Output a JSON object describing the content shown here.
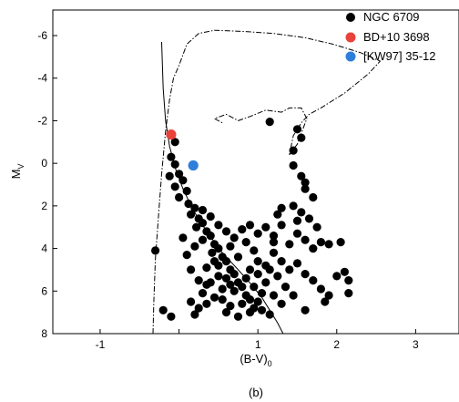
{
  "chart_data": {
    "type": "scatter",
    "caption": "(b)",
    "xlabel": {
      "main": "(B-V)",
      "sub": "0"
    },
    "ylabel": {
      "main": "M",
      "sub": "V"
    },
    "xlim": [
      -1.6,
      3.55
    ],
    "ylim": [
      8,
      -7.2
    ],
    "y_inverted": true,
    "x_ticks": [
      -1,
      0,
      1,
      2,
      3
    ],
    "x_tick_labels": [
      "-1",
      "0",
      "1",
      "2",
      "3"
    ],
    "x_tick_labels_shown": [
      "-1",
      "",
      "1",
      "2",
      "3"
    ],
    "y_ticks": [
      -6,
      -4,
      -2,
      0,
      2,
      4,
      6,
      8
    ],
    "y_tick_labels": [
      "-6",
      "-4",
      "-2",
      "0",
      "2",
      "4",
      "6",
      "8"
    ],
    "legend_position": "top-right",
    "colors": {
      "ngc": "#000000",
      "bd": "#e8423a",
      "kw": "#2e7fdc"
    },
    "series": [
      {
        "name": "NGC 6709",
        "color": "#000000",
        "points": [
          [
            -0.05,
            -1.0
          ],
          [
            -0.1,
            -0.3
          ],
          [
            -0.05,
            0.05
          ],
          [
            0.0,
            0.5
          ],
          [
            -0.12,
            0.6
          ],
          [
            0.05,
            0.8
          ],
          [
            -0.05,
            1.1
          ],
          [
            0.1,
            1.3
          ],
          [
            0.0,
            1.6
          ],
          [
            0.12,
            1.9
          ],
          [
            0.2,
            2.1
          ],
          [
            0.15,
            2.4
          ],
          [
            0.25,
            2.6
          ],
          [
            0.3,
            2.8
          ],
          [
            0.22,
            3.0
          ],
          [
            0.35,
            3.2
          ],
          [
            0.4,
            3.4
          ],
          [
            0.3,
            3.6
          ],
          [
            0.45,
            3.8
          ],
          [
            0.5,
            4.0
          ],
          [
            0.42,
            4.2
          ],
          [
            0.55,
            4.4
          ],
          [
            0.6,
            4.6
          ],
          [
            0.5,
            4.8
          ],
          [
            0.65,
            5.0
          ],
          [
            0.7,
            5.2
          ],
          [
            0.6,
            5.4
          ],
          [
            0.75,
            5.6
          ],
          [
            0.8,
            5.8
          ],
          [
            0.7,
            6.0
          ],
          [
            0.85,
            6.2
          ],
          [
            0.9,
            6.4
          ],
          [
            0.8,
            6.6
          ],
          [
            0.95,
            6.8
          ],
          [
            1.0,
            6.5
          ],
          [
            0.55,
            5.9
          ],
          [
            0.45,
            6.3
          ],
          [
            0.35,
            5.7
          ],
          [
            0.3,
            6.1
          ],
          [
            0.25,
            6.8
          ],
          [
            0.2,
            7.1
          ],
          [
            0.15,
            6.5
          ],
          [
            -0.2,
            6.9
          ],
          [
            -0.1,
            7.2
          ],
          [
            -0.3,
            4.1
          ],
          [
            0.05,
            3.5
          ],
          [
            0.1,
            4.3
          ],
          [
            0.2,
            3.9
          ],
          [
            0.15,
            5.0
          ],
          [
            0.25,
            5.5
          ],
          [
            1.1,
            3.0
          ],
          [
            1.2,
            3.4
          ],
          [
            1.3,
            2.9
          ],
          [
            1.4,
            3.8
          ],
          [
            1.5,
            3.3
          ],
          [
            1.6,
            3.6
          ],
          [
            1.7,
            4.0
          ],
          [
            1.8,
            3.7
          ],
          [
            1.9,
            3.8
          ],
          [
            2.05,
            3.7
          ],
          [
            1.25,
            2.4
          ],
          [
            1.3,
            2.1
          ],
          [
            1.5,
            2.7
          ],
          [
            1.75,
            3.0
          ],
          [
            1.65,
            2.6
          ],
          [
            1.45,
            2.0
          ],
          [
            1.55,
            2.3
          ],
          [
            1.6,
            1.2
          ],
          [
            1.7,
            1.6
          ],
          [
            1.45,
            -0.6
          ],
          [
            1.55,
            -1.2
          ],
          [
            1.5,
            -1.6
          ],
          [
            1.45,
            0.1
          ],
          [
            1.55,
            0.6
          ],
          [
            1.6,
            0.9
          ],
          [
            1.15,
            -1.95
          ],
          [
            1.2,
            4.2
          ],
          [
            1.3,
            4.6
          ],
          [
            1.4,
            5.0
          ],
          [
            1.5,
            4.7
          ],
          [
            1.6,
            5.2
          ],
          [
            1.7,
            5.5
          ],
          [
            1.8,
            5.9
          ],
          [
            1.9,
            6.2
          ],
          [
            2.0,
            5.3
          ],
          [
            2.1,
            5.1
          ],
          [
            2.15,
            5.5
          ],
          [
            2.15,
            6.1
          ],
          [
            1.85,
            6.5
          ],
          [
            1.6,
            6.9
          ],
          [
            1.2,
            6.2
          ],
          [
            1.3,
            6.6
          ],
          [
            1.1,
            5.6
          ],
          [
            1.0,
            5.2
          ],
          [
            0.9,
            5.0
          ],
          [
            1.0,
            4.6
          ],
          [
            1.1,
            4.8
          ],
          [
            0.95,
            4.1
          ],
          [
            0.85,
            3.7
          ],
          [
            0.75,
            4.4
          ],
          [
            0.65,
            3.9
          ],
          [
            0.7,
            3.5
          ],
          [
            0.6,
            3.2
          ],
          [
            0.5,
            2.9
          ],
          [
            0.4,
            2.5
          ],
          [
            0.3,
            2.2
          ],
          [
            1.0,
            3.3
          ],
          [
            0.9,
            2.9
          ],
          [
            0.8,
            3.1
          ],
          [
            1.2,
            3.7
          ],
          [
            0.5,
            5.3
          ],
          [
            0.4,
            5.6
          ],
          [
            0.35,
            6.6
          ],
          [
            0.6,
            7.0
          ],
          [
            0.75,
            7.2
          ],
          [
            0.9,
            7.0
          ],
          [
            1.05,
            6.9
          ],
          [
            1.15,
            7.1
          ],
          [
            0.65,
            6.7
          ],
          [
            0.55,
            6.4
          ],
          [
            0.95,
            5.8
          ],
          [
            1.05,
            6.1
          ],
          [
            1.25,
            5.3
          ],
          [
            1.35,
            5.8
          ],
          [
            1.45,
            6.2
          ],
          [
            1.15,
            5.0
          ],
          [
            0.85,
            5.4
          ],
          [
            0.65,
            5.7
          ],
          [
            0.45,
            4.6
          ],
          [
            0.35,
            4.9
          ]
        ]
      },
      {
        "name": "BD+10 3698",
        "color": "#e8423a",
        "points": [
          [
            -0.1,
            -1.35
          ]
        ]
      },
      {
        "name": "[KW97] 35-12",
        "color": "#2e7fdc",
        "points": [
          [
            0.18,
            0.1
          ]
        ]
      }
    ],
    "isochrones": [
      {
        "style": "solid",
        "points": [
          [
            -0.22,
            -5.7
          ],
          [
            -0.2,
            -3.5
          ],
          [
            -0.17,
            -2.0
          ],
          [
            -0.12,
            -0.8
          ],
          [
            -0.04,
            0.3
          ],
          [
            0.05,
            1.2
          ],
          [
            0.18,
            2.2
          ],
          [
            0.35,
            3.2
          ],
          [
            0.55,
            4.2
          ],
          [
            0.75,
            5.0
          ],
          [
            0.92,
            5.7
          ],
          [
            1.05,
            6.3
          ],
          [
            1.15,
            6.9
          ],
          [
            1.25,
            7.5
          ],
          [
            1.32,
            8.0
          ]
        ]
      },
      {
        "style": "dashdot",
        "points": [
          [
            -0.33,
            8.0
          ],
          [
            -0.32,
            6.5
          ],
          [
            -0.3,
            4.5
          ],
          [
            -0.26,
            2.5
          ],
          [
            -0.22,
            0.5
          ],
          [
            -0.17,
            -1.5
          ],
          [
            -0.12,
            -3.0
          ],
          [
            -0.07,
            -4.0
          ],
          [
            0.0,
            -4.6
          ],
          [
            0.1,
            -5.6
          ],
          [
            0.25,
            -6.1
          ],
          [
            0.45,
            -6.25
          ],
          [
            0.8,
            -6.2
          ],
          [
            1.2,
            -6.1
          ],
          [
            1.6,
            -5.9
          ],
          [
            1.95,
            -5.6
          ],
          [
            2.3,
            -5.2
          ],
          [
            2.55,
            -4.8
          ],
          [
            2.4,
            -4.2
          ],
          [
            2.1,
            -3.3
          ],
          [
            1.8,
            -2.6
          ],
          [
            1.65,
            -2.3
          ],
          [
            1.55,
            -1.9
          ],
          [
            1.45,
            -1.3
          ],
          [
            1.4,
            -0.4
          ],
          [
            1.5,
            -0.9
          ],
          [
            1.62,
            -2.1
          ],
          [
            1.55,
            -2.6
          ],
          [
            1.4,
            -2.6
          ],
          [
            1.3,
            -2.4
          ],
          [
            1.1,
            -2.5
          ],
          [
            0.9,
            -2.2
          ],
          [
            0.75,
            -2.0
          ],
          [
            0.6,
            -2.3
          ],
          [
            0.45,
            -2.1
          ],
          [
            0.55,
            -1.9
          ]
        ]
      }
    ]
  }
}
